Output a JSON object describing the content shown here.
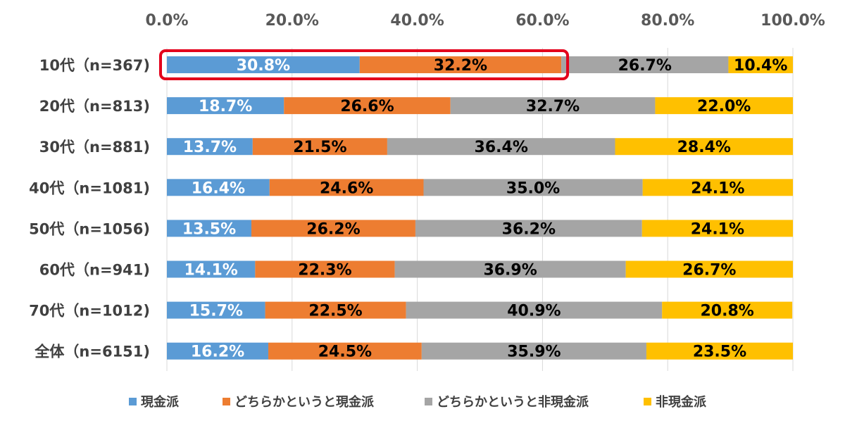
{
  "chart_data": {
    "type": "bar",
    "orientation": "horizontal-stacked-100",
    "x_ticks": [
      "0.0%",
      "20.0%",
      "40.0%",
      "60.0%",
      "80.0%",
      "100.0%"
    ],
    "xlim": [
      0,
      100
    ],
    "x_axis_position": "top",
    "grid": true,
    "legend_position": "bottom",
    "categories": [
      "10代（n=367)",
      "20代（n=813)",
      "30代（n=881)",
      "40代（n=1081)",
      "50代（n=1056)",
      "60代（n=941)",
      "70代（n=1012)",
      "全体（n=6151)"
    ],
    "series": [
      {
        "name": "現金派",
        "color": "#5B9BD5",
        "label_color": "#ffffff",
        "values": [
          30.8,
          18.7,
          13.7,
          16.4,
          13.5,
          14.1,
          15.7,
          16.2
        ],
        "labels": [
          "30.8%",
          "18.7%",
          "13.7%",
          "16.4%",
          "13.5%",
          "14.1%",
          "15.7%",
          "16.2%"
        ]
      },
      {
        "name": "どちらかというと現金派",
        "color": "#ED7D31",
        "label_color": "#000000",
        "values": [
          32.2,
          26.6,
          21.5,
          24.6,
          26.2,
          22.3,
          22.5,
          24.5
        ],
        "labels": [
          "32.2%",
          "26.6%",
          "21.5%",
          "24.6%",
          "26.2%",
          "22.3%",
          "22.5%",
          "24.5%"
        ]
      },
      {
        "name": "どちらかというと非現金派",
        "color": "#A5A5A5",
        "label_color": "#000000",
        "values": [
          26.7,
          32.7,
          36.4,
          35.0,
          36.2,
          36.9,
          40.9,
          35.9
        ],
        "labels": [
          "26.7%",
          "32.7%",
          "36.4%",
          "35.0%",
          "36.2%",
          "36.9%",
          "40.9%",
          "35.9%"
        ]
      },
      {
        "name": "非現金派",
        "color": "#FFC000",
        "label_color": "#000000",
        "values": [
          10.4,
          22.0,
          28.4,
          24.1,
          24.1,
          26.7,
          20.8,
          23.5
        ],
        "labels": [
          "10.4%",
          "22.0%",
          "28.4%",
          "24.1%",
          "24.1%",
          "26.7%",
          "20.8%",
          "23.5%"
        ]
      }
    ],
    "highlight": {
      "category_index": 0,
      "series_indices": [
        0,
        1
      ],
      "color": "#E3001B"
    }
  }
}
